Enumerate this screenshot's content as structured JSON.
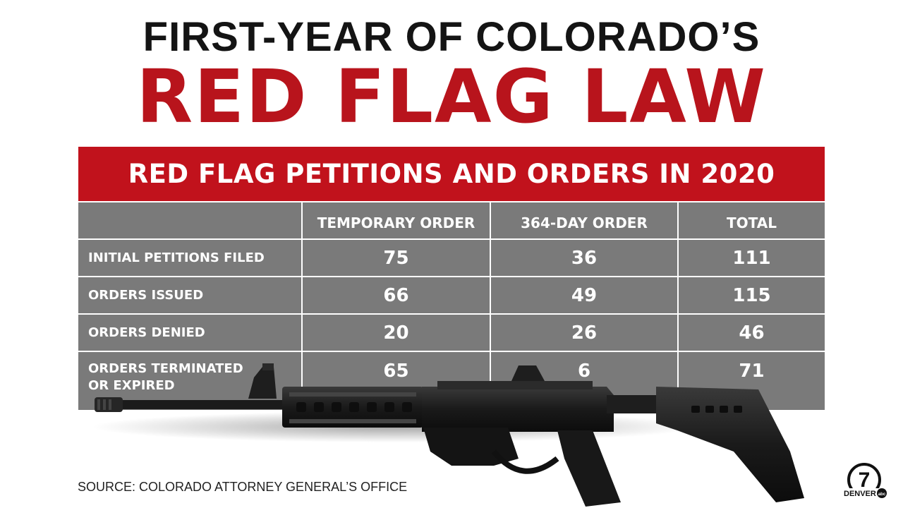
{
  "header": {
    "kicker": "FIRST-YEAR OF COLORADO’S",
    "title": "RED FLAG LAW"
  },
  "table": {
    "banner": "RED FLAG PETITIONS AND ORDERS IN 2020",
    "columns": [
      "",
      "TEMPORARY ORDER",
      "364-DAY ORDER",
      "TOTAL"
    ],
    "rows": [
      {
        "label": "INITIAL PETITIONS FILED",
        "temporary": "75",
        "day364": "36",
        "total": "111"
      },
      {
        "label": "ORDERS ISSUED",
        "temporary": "66",
        "day364": "49",
        "total": "115"
      },
      {
        "label": "ORDERS DENIED",
        "temporary": "20",
        "day364": "26",
        "total": "46"
      },
      {
        "label_line1": "ORDERS TERMINATED",
        "label_line2": "OR EXPIRED",
        "temporary": "65",
        "day364": "6",
        "total": "71"
      }
    ]
  },
  "footer": {
    "source": "SOURCE: COLORADO ATTORNEY GENERAL’S OFFICE"
  },
  "logo": {
    "number": "7",
    "station": "DENVER",
    "network": "abc"
  },
  "colors": {
    "red": "#c1121c",
    "title_red": "#b8141c",
    "cell_gray": "#7a7a7a",
    "text_dark": "#141414"
  }
}
